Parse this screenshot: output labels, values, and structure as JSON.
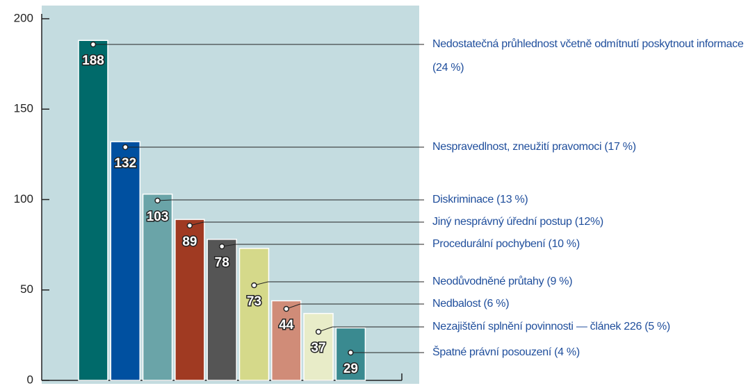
{
  "chart_data": {
    "type": "bar",
    "categories": [
      "Nedostatečná průhlednost včetně odmítnutí poskytnout informace (24 %)",
      "Nespravedlnost, zneužití pravomoci (17 %)",
      "Diskriminace (13 %)",
      "Jiný nesprávný úřední postup (12%)",
      "Procedurální pochybení (10 %)",
      "Neodůvodněné průtahy (9 %)",
      "Nedbalost (6 %)",
      "Nezajištění splnění povinnosti — článek 226 (5 %)",
      "Špatné právní posouzení (4 %)"
    ],
    "values": [
      188,
      132,
      103,
      89,
      78,
      73,
      44,
      37,
      29
    ],
    "colors": [
      "#006a6a",
      "#0050a0",
      "#6aa4a8",
      "#a03a22",
      "#555555",
      "#d5d98a",
      "#d08c78",
      "#e8ecc8",
      "#3a8a90"
    ],
    "ylim": [
      0,
      200
    ],
    "yticks": [
      0,
      50,
      100,
      150,
      200
    ]
  }
}
